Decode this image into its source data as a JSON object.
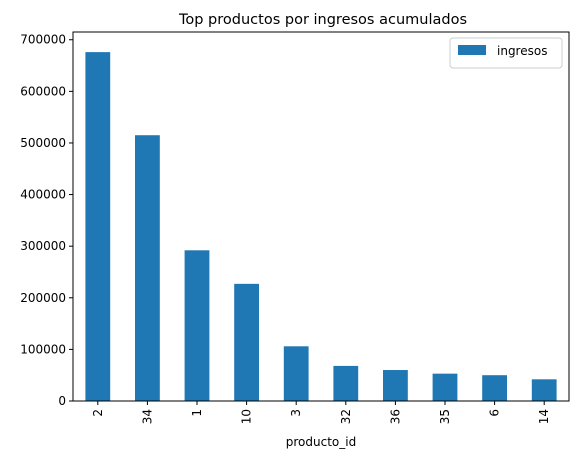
{
  "chart_data": {
    "type": "bar",
    "title": "Top productos por ingresos acumulados",
    "xlabel": "producto_id",
    "ylabel": "",
    "categories": [
      "2",
      "34",
      "1",
      "10",
      "3",
      "32",
      "36",
      "35",
      "6",
      "14"
    ],
    "series": [
      {
        "name": "ingresos",
        "color": "#1f77b4",
        "values": [
          676000,
          515000,
          292000,
          227000,
          106000,
          68000,
          60000,
          53000,
          50000,
          42000
        ]
      }
    ],
    "ylim": [
      0,
      715000
    ],
    "yticks": [
      0,
      100000,
      200000,
      300000,
      400000,
      500000,
      600000,
      700000
    ],
    "ytick_labels": [
      "0",
      "100000",
      "200000",
      "300000",
      "400000",
      "500000",
      "600000",
      "700000"
    ],
    "grid": false,
    "legend": "upper right"
  }
}
